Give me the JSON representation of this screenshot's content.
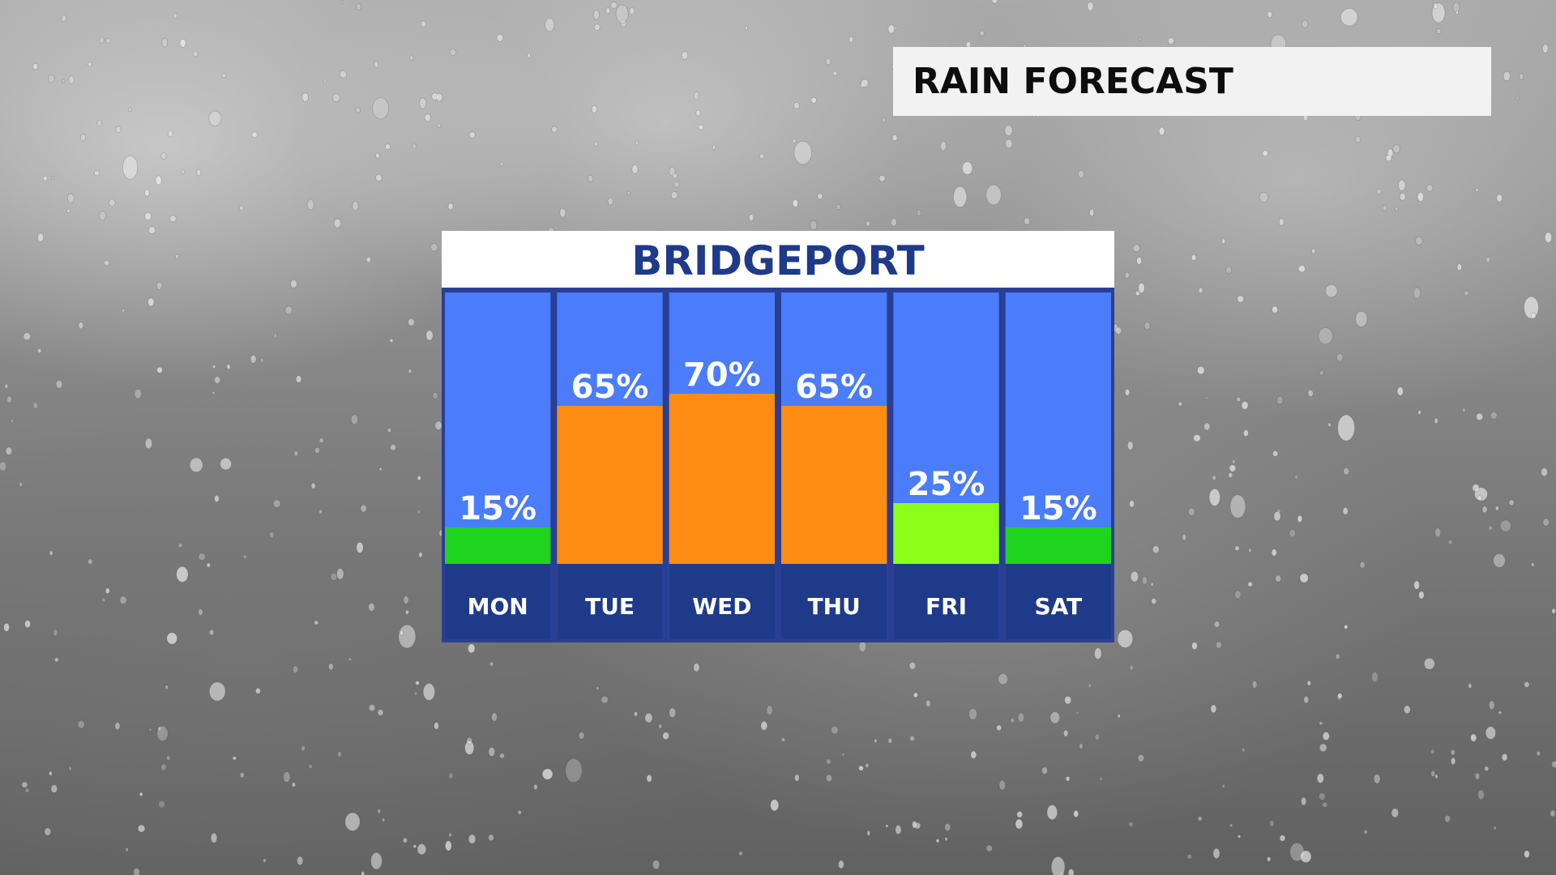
{
  "header": {
    "title": "RAIN FORECAST"
  },
  "location": {
    "name": "BRIDGEPORT"
  },
  "colors": {
    "column_bg": "#4a7cfb",
    "day_band": "#1f3a88",
    "frame": "#2a3f93",
    "label_text": "#ffffff",
    "bar_green": "#1fd41f",
    "bar_lime": "#8cff19",
    "bar_orange": "#ff8c12"
  },
  "chart_data": {
    "type": "bar",
    "categories": [
      "MON",
      "TUE",
      "WED",
      "THU",
      "FRI",
      "SAT"
    ],
    "values": [
      15,
      65,
      70,
      65,
      25,
      15
    ],
    "value_labels": [
      "15%",
      "65%",
      "70%",
      "65%",
      "25%",
      "15%"
    ],
    "bar_colors": [
      "#1fd41f",
      "#ff8c12",
      "#ff8c12",
      "#ff8c12",
      "#8cff19",
      "#1fd41f"
    ],
    "title": "BRIDGEPORT",
    "ylim": [
      0,
      100
    ],
    "grid": false
  }
}
